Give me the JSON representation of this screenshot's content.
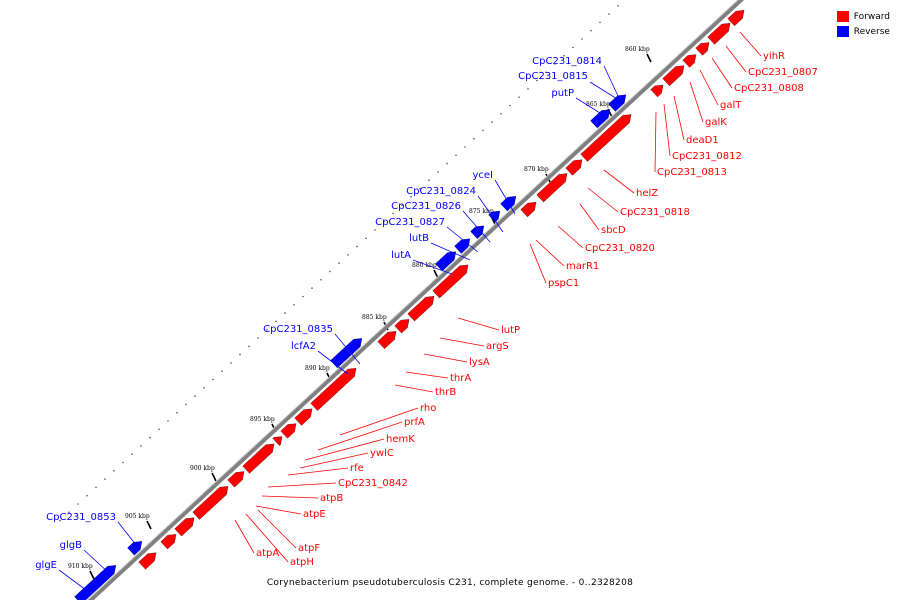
{
  "colors": {
    "forward": "#ff0000",
    "reverse": "#0000ff",
    "backbone": "#808080"
  },
  "legend": {
    "forward_label": "Forward",
    "reverse_label": "Reverse"
  },
  "caption": "Corynebacterium pseudotuberculosis C231, complete genome. - 0..2328208",
  "ticks": [
    "860 kbp",
    "865 kbp",
    "870 kbp",
    "875 kbp",
    "880 kbp",
    "885 kbp",
    "890 kbp",
    "895 kbp",
    "900 kbp",
    "905 kbp",
    "910 kbp"
  ],
  "reverse_labels": [
    "CpC231_0814",
    "CpC231_0815",
    "putP",
    "yceI",
    "CpC231_0824",
    "CpC231_0826",
    "CpC231_0827",
    "lutB",
    "lutA",
    "CpC231_0835",
    "lcfA2",
    "CpC231_0853",
    "glgB",
    "glgE"
  ],
  "forward_labels": [
    "yihR",
    "CpC231_0807",
    "CpC231_0808",
    "galT",
    "galK",
    "deaD1",
    "CpC231_0812",
    "CpC231_0813",
    "helZ",
    "CpC231_0818",
    "sbcD",
    "CpC231_0820",
    "marR1",
    "pspC1",
    "lutP",
    "argS",
    "lysA",
    "thrA",
    "thrB",
    "rho",
    "prfA",
    "hemK",
    "ywlC",
    "rfe",
    "CpC231_0842",
    "atpB",
    "atpE",
    "atpF",
    "atpA",
    "atpH"
  ]
}
